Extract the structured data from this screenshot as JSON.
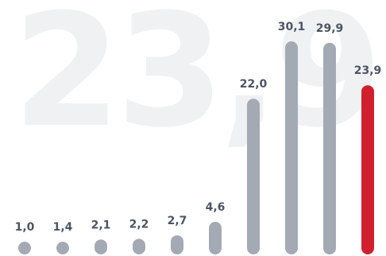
{
  "watermark_text": "23,9",
  "colors": {
    "bar": "#a4aab3",
    "highlight": "#d0202e",
    "label": "#4b5563",
    "watermark": "#f0f1f3"
  },
  "chart_data": {
    "type": "bar",
    "categories": [],
    "values": [
      1.0,
      1.4,
      2.1,
      2.2,
      2.7,
      4.6,
      22.0,
      30.1,
      29.9,
      23.9
    ],
    "labels": [
      "1,0",
      "1,4",
      "2,1",
      "2,2",
      "2,7",
      "4,6",
      "22,0",
      "30,1",
      "29,9",
      "23,9"
    ],
    "highlight_index": 9,
    "title": "",
    "xlabel": "",
    "ylabel": "",
    "grid": false,
    "legend": "none"
  }
}
